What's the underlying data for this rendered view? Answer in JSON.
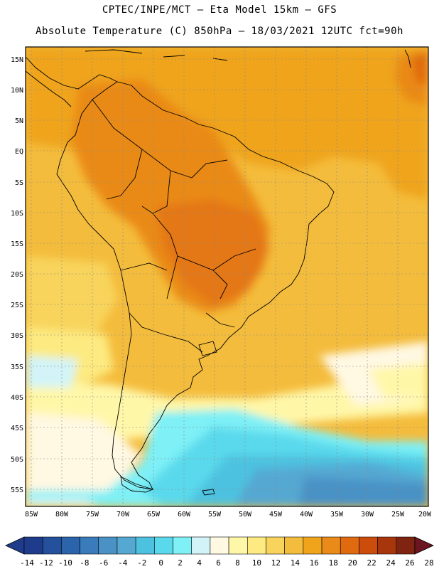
{
  "header": {
    "line1": "CPTEC/INPE/MCT –  Eta Model 15km – GFS",
    "line2": "Absolute Temperature (C) 850hPa – 18/03/2021 12UTC fct=90h"
  },
  "map": {
    "lat_ticks": [
      "15N",
      "10N",
      "5N",
      "EQ",
      "5S",
      "10S",
      "15S",
      "20S",
      "25S",
      "30S",
      "35S",
      "40S",
      "45S",
      "50S",
      "55S"
    ],
    "lon_ticks": [
      "85W",
      "80W",
      "75W",
      "70W",
      "65W",
      "60W",
      "55W",
      "50W",
      "45W",
      "40W",
      "35W",
      "30W",
      "25W",
      "20W"
    ],
    "extent": {
      "lon": [
        -86,
        -20
      ],
      "lat": [
        -58,
        16
      ]
    }
  },
  "colorbar": {
    "labels": [
      "-14",
      "-12",
      "-10",
      "-8",
      "-6",
      "-4",
      "-2",
      "0",
      "2",
      "4",
      "6",
      "8",
      "10",
      "12",
      "14",
      "16",
      "18",
      "20",
      "22",
      "24",
      "26",
      "28"
    ],
    "colors": [
      "#1f3c8c",
      "#24509c",
      "#2c64ac",
      "#3a7bbb",
      "#4a92c6",
      "#55a8d2",
      "#4dc2e0",
      "#5ad9ec",
      "#7ef0f6",
      "#d2f4f8",
      "#fff8e2",
      "#fff7a8",
      "#fdea80",
      "#f8d45c",
      "#f4bc3c",
      "#efa41c",
      "#ea8a18",
      "#e06a10",
      "#cc4c0c",
      "#a8360c",
      "#7e2410"
    ]
  }
}
